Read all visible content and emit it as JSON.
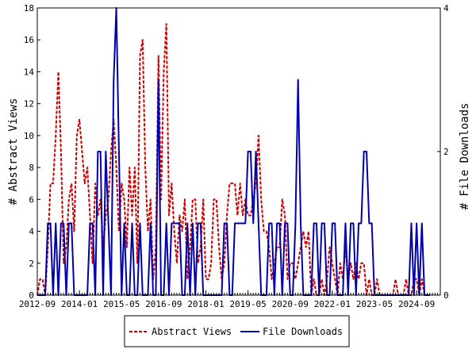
{
  "chart_data": {
    "type": "line",
    "title": "",
    "y_left_label": "# Abstract Views",
    "y_right_label": "# File Downloads",
    "y_left_range": [
      0,
      18
    ],
    "y_right_range": [
      0,
      4
    ],
    "y_left_ticks": [
      "0",
      "2",
      "4",
      "6",
      "8",
      "10",
      "12",
      "14",
      "16",
      "18"
    ],
    "y_right_ticks": [
      "0",
      "2",
      "4"
    ],
    "x_range": [
      "2012-09",
      "2025-06"
    ],
    "x_tick_labels": [
      "2012-09",
      "2014-01",
      "2015-05",
      "2016-09",
      "2018-01",
      "2019-05",
      "2020-09",
      "2022-01",
      "2023-05",
      "2024-09"
    ],
    "grid": false,
    "legend_position": "bottom",
    "colors": {
      "abstract_views": "#cc0000",
      "file_downloads": "#0000aa"
    },
    "series": [
      {
        "name": "Abstract Views",
        "axis": "left",
        "style": "dashed",
        "points": [
          [
            "2012-09",
            0
          ],
          [
            "2012-10",
            1
          ],
          [
            "2012-11",
            1
          ],
          [
            "2012-12",
            0
          ],
          [
            "2013-01",
            3
          ],
          [
            "2013-02",
            7
          ],
          [
            "2013-03",
            7
          ],
          [
            "2013-04",
            10
          ],
          [
            "2013-05",
            14
          ],
          [
            "2013-06",
            9
          ],
          [
            "2013-07",
            2
          ],
          [
            "2013-08",
            3
          ],
          [
            "2013-09",
            6
          ],
          [
            "2013-10",
            7
          ],
          [
            "2013-11",
            4
          ],
          [
            "2013-12",
            10
          ],
          [
            "2014-01",
            11
          ],
          [
            "2014-02",
            9
          ],
          [
            "2014-03",
            7
          ],
          [
            "2014-04",
            8
          ],
          [
            "2014-05",
            5
          ],
          [
            "2014-06",
            2
          ],
          [
            "2014-07",
            7
          ],
          [
            "2014-08",
            5
          ],
          [
            "2014-09",
            6
          ],
          [
            "2014-10",
            3
          ],
          [
            "2014-11",
            5
          ],
          [
            "2014-12",
            6
          ],
          [
            "2015-01",
            9
          ],
          [
            "2015-02",
            11
          ],
          [
            "2015-03",
            8
          ],
          [
            "2015-04",
            4
          ],
          [
            "2015-05",
            7
          ],
          [
            "2015-06",
            6
          ],
          [
            "2015-07",
            3
          ],
          [
            "2015-08",
            8
          ],
          [
            "2015-09",
            5
          ],
          [
            "2015-10",
            8
          ],
          [
            "2015-11",
            2
          ],
          [
            "2015-12",
            15
          ],
          [
            "2016-01",
            16
          ],
          [
            "2016-02",
            8
          ],
          [
            "2016-03",
            4
          ],
          [
            "2016-04",
            6
          ],
          [
            "2016-05",
            1
          ],
          [
            "2016-06",
            3
          ],
          [
            "2016-07",
            15
          ],
          [
            "2016-08",
            6
          ],
          [
            "2016-09",
            14
          ],
          [
            "2016-10",
            17
          ],
          [
            "2016-11",
            5
          ],
          [
            "2016-12",
            7
          ],
          [
            "2017-01",
            4
          ],
          [
            "2017-02",
            2
          ],
          [
            "2017-03",
            5
          ],
          [
            "2017-04",
            4
          ],
          [
            "2017-05",
            6
          ],
          [
            "2017-06",
            1
          ],
          [
            "2017-07",
            3
          ],
          [
            "2017-08",
            6
          ],
          [
            "2017-09",
            6
          ],
          [
            "2017-10",
            2
          ],
          [
            "2017-11",
            3
          ],
          [
            "2017-12",
            6
          ],
          [
            "2018-01",
            1
          ],
          [
            "2018-02",
            1
          ],
          [
            "2018-03",
            2
          ],
          [
            "2018-04",
            6
          ],
          [
            "2018-05",
            6
          ],
          [
            "2018-06",
            3
          ],
          [
            "2018-07",
            1
          ],
          [
            "2018-08",
            2
          ],
          [
            "2018-09",
            5
          ],
          [
            "2018-10",
            7
          ],
          [
            "2018-11",
            7
          ],
          [
            "2018-12",
            7
          ],
          [
            "2019-01",
            5
          ],
          [
            "2019-02",
            7
          ],
          [
            "2019-03",
            5
          ],
          [
            "2019-04",
            6
          ],
          [
            "2019-05",
            5
          ],
          [
            "2019-06",
            5
          ],
          [
            "2019-07",
            6
          ],
          [
            "2019-08",
            7
          ],
          [
            "2019-09",
            10
          ],
          [
            "2019-10",
            6
          ],
          [
            "2019-11",
            4
          ],
          [
            "2019-12",
            4
          ],
          [
            "2020-01",
            3
          ],
          [
            "2020-02",
            1
          ],
          [
            "2020-03",
            2
          ],
          [
            "2020-04",
            3
          ],
          [
            "2020-05",
            3
          ],
          [
            "2020-06",
            6
          ],
          [
            "2020-07",
            5
          ],
          [
            "2020-08",
            1
          ],
          [
            "2020-09",
            2
          ],
          [
            "2020-10",
            2
          ],
          [
            "2020-11",
            1
          ],
          [
            "2020-12",
            2
          ],
          [
            "2021-01",
            3
          ],
          [
            "2021-02",
            4
          ],
          [
            "2021-03",
            3
          ],
          [
            "2021-04",
            4
          ],
          [
            "2021-05",
            0
          ],
          [
            "2021-06",
            1
          ],
          [
            "2021-07",
            0
          ],
          [
            "2021-08",
            0
          ],
          [
            "2021-09",
            1
          ],
          [
            "2021-10",
            0
          ],
          [
            "2021-11",
            1
          ],
          [
            "2021-12",
            3
          ],
          [
            "2022-01",
            2
          ],
          [
            "2022-02",
            1
          ],
          [
            "2022-03",
            0
          ],
          [
            "2022-04",
            2
          ],
          [
            "2022-05",
            1
          ],
          [
            "2022-06",
            3
          ],
          [
            "2022-07",
            1
          ],
          [
            "2022-08",
            2
          ],
          [
            "2022-09",
            1
          ],
          [
            "2022-10",
            2
          ],
          [
            "2022-11",
            1
          ],
          [
            "2022-12",
            2
          ],
          [
            "2023-01",
            2
          ],
          [
            "2023-02",
            0
          ],
          [
            "2023-03",
            1
          ],
          [
            "2023-04",
            0
          ],
          [
            "2023-05",
            0
          ],
          [
            "2023-06",
            1
          ],
          [
            "2023-07",
            0
          ],
          [
            "2023-08",
            0
          ],
          [
            "2023-09",
            0
          ],
          [
            "2023-10",
            0
          ],
          [
            "2023-11",
            0
          ],
          [
            "2023-12",
            0
          ],
          [
            "2024-01",
            1
          ],
          [
            "2024-02",
            0
          ],
          [
            "2024-03",
            0
          ],
          [
            "2024-04",
            0
          ],
          [
            "2024-05",
            1
          ],
          [
            "2024-06",
            0
          ],
          [
            "2024-07",
            0
          ],
          [
            "2024-08",
            1
          ],
          [
            "2024-09",
            1
          ],
          [
            "2024-10",
            0
          ],
          [
            "2024-11",
            1
          ],
          [
            "2024-12",
            0
          ],
          [
            "2025-01",
            0
          ],
          [
            "2025-02",
            0
          ]
        ]
      },
      {
        "name": "File Downloads",
        "axis": "right",
        "style": "solid",
        "points": [
          [
            "2012-09",
            0
          ],
          [
            "2012-10",
            0
          ],
          [
            "2012-11",
            0
          ],
          [
            "2012-12",
            0
          ],
          [
            "2013-01",
            1
          ],
          [
            "2013-02",
            1
          ],
          [
            "2013-03",
            0
          ],
          [
            "2013-04",
            1
          ],
          [
            "2013-05",
            0
          ],
          [
            "2013-06",
            1
          ],
          [
            "2013-07",
            1
          ],
          [
            "2013-08",
            0
          ],
          [
            "2013-09",
            1
          ],
          [
            "2013-10",
            1
          ],
          [
            "2013-11",
            0
          ],
          [
            "2013-12",
            0
          ],
          [
            "2014-01",
            0
          ],
          [
            "2014-02",
            0
          ],
          [
            "2014-03",
            0
          ],
          [
            "2014-04",
            0
          ],
          [
            "2014-05",
            1
          ],
          [
            "2014-06",
            1
          ],
          [
            "2014-07",
            0
          ],
          [
            "2014-08",
            2
          ],
          [
            "2014-09",
            2
          ],
          [
            "2014-10",
            0
          ],
          [
            "2014-11",
            2
          ],
          [
            "2014-12",
            1
          ],
          [
            "2015-01",
            0
          ],
          [
            "2015-02",
            3
          ],
          [
            "2015-03",
            4
          ],
          [
            "2015-04",
            2
          ],
          [
            "2015-05",
            0
          ],
          [
            "2015-06",
            1
          ],
          [
            "2015-07",
            0
          ],
          [
            "2015-08",
            0
          ],
          [
            "2015-09",
            1
          ],
          [
            "2015-10",
            0
          ],
          [
            "2015-11",
            0
          ],
          [
            "2015-12",
            1
          ],
          [
            "2016-01",
            0
          ],
          [
            "2016-02",
            0
          ],
          [
            "2016-03",
            0
          ],
          [
            "2016-04",
            1
          ],
          [
            "2016-05",
            0
          ],
          [
            "2016-06",
            0
          ],
          [
            "2016-07",
            3
          ],
          [
            "2016-08",
            0
          ],
          [
            "2016-09",
            0
          ],
          [
            "2016-10",
            1
          ],
          [
            "2016-11",
            0
          ],
          [
            "2016-12",
            1
          ],
          [
            "2017-01",
            1
          ],
          [
            "2017-02",
            1
          ],
          [
            "2017-03",
            1
          ],
          [
            "2017-04",
            0
          ],
          [
            "2017-05",
            0
          ],
          [
            "2017-06",
            1
          ],
          [
            "2017-07",
            0
          ],
          [
            "2017-08",
            1
          ],
          [
            "2017-09",
            0
          ],
          [
            "2017-10",
            1
          ],
          [
            "2017-11",
            1
          ],
          [
            "2017-12",
            0
          ],
          [
            "2018-01",
            0
          ],
          [
            "2018-02",
            0
          ],
          [
            "2018-03",
            0
          ],
          [
            "2018-04",
            0
          ],
          [
            "2018-05",
            0
          ],
          [
            "2018-06",
            0
          ],
          [
            "2018-07",
            0
          ],
          [
            "2018-08",
            1
          ],
          [
            "2018-09",
            1
          ],
          [
            "2018-10",
            0
          ],
          [
            "2018-11",
            0
          ],
          [
            "2018-12",
            1
          ],
          [
            "2019-01",
            1
          ],
          [
            "2019-02",
            1
          ],
          [
            "2019-03",
            1
          ],
          [
            "2019-04",
            1
          ],
          [
            "2019-05",
            2
          ],
          [
            "2019-06",
            2
          ],
          [
            "2019-07",
            1
          ],
          [
            "2019-08",
            2
          ],
          [
            "2019-09",
            1
          ],
          [
            "2019-10",
            0
          ],
          [
            "2019-11",
            0
          ],
          [
            "2019-12",
            0
          ],
          [
            "2020-01",
            1
          ],
          [
            "2020-02",
            1
          ],
          [
            "2020-03",
            0
          ],
          [
            "2020-04",
            1
          ],
          [
            "2020-05",
            1
          ],
          [
            "2020-06",
            0
          ],
          [
            "2020-07",
            1
          ],
          [
            "2020-08",
            1
          ],
          [
            "2020-09",
            0
          ],
          [
            "2020-10",
            0
          ],
          [
            "2020-11",
            1
          ],
          [
            "2020-12",
            3
          ],
          [
            "2021-01",
            1
          ],
          [
            "2021-02",
            0
          ],
          [
            "2021-03",
            0
          ],
          [
            "2021-04",
            0
          ],
          [
            "2021-05",
            0
          ],
          [
            "2021-06",
            1
          ],
          [
            "2021-07",
            1
          ],
          [
            "2021-08",
            0
          ],
          [
            "2021-09",
            1
          ],
          [
            "2021-10",
            1
          ],
          [
            "2021-11",
            0
          ],
          [
            "2021-12",
            0
          ],
          [
            "2022-01",
            1
          ],
          [
            "2022-02",
            1
          ],
          [
            "2022-03",
            0
          ],
          [
            "2022-04",
            0
          ],
          [
            "2022-05",
            0
          ],
          [
            "2022-06",
            1
          ],
          [
            "2022-07",
            0
          ],
          [
            "2022-08",
            1
          ],
          [
            "2022-09",
            1
          ],
          [
            "2022-10",
            0
          ],
          [
            "2022-11",
            1
          ],
          [
            "2022-12",
            1
          ],
          [
            "2023-01",
            2
          ],
          [
            "2023-02",
            2
          ],
          [
            "2023-03",
            1
          ],
          [
            "2023-04",
            1
          ],
          [
            "2023-05",
            0
          ],
          [
            "2023-06",
            0
          ],
          [
            "2023-07",
            0
          ],
          [
            "2023-08",
            0
          ],
          [
            "2023-09",
            0
          ],
          [
            "2023-10",
            0
          ],
          [
            "2023-11",
            0
          ],
          [
            "2023-12",
            0
          ],
          [
            "2024-01",
            0
          ],
          [
            "2024-02",
            0
          ],
          [
            "2024-03",
            0
          ],
          [
            "2024-04",
            0
          ],
          [
            "2024-05",
            0
          ],
          [
            "2024-06",
            0
          ],
          [
            "2024-07",
            1
          ],
          [
            "2024-08",
            0
          ],
          [
            "2024-09",
            1
          ],
          [
            "2024-10",
            0
          ],
          [
            "2024-11",
            1
          ],
          [
            "2024-12",
            0
          ],
          [
            "2025-01",
            0
          ],
          [
            "2025-02",
            0
          ]
        ]
      }
    ]
  }
}
